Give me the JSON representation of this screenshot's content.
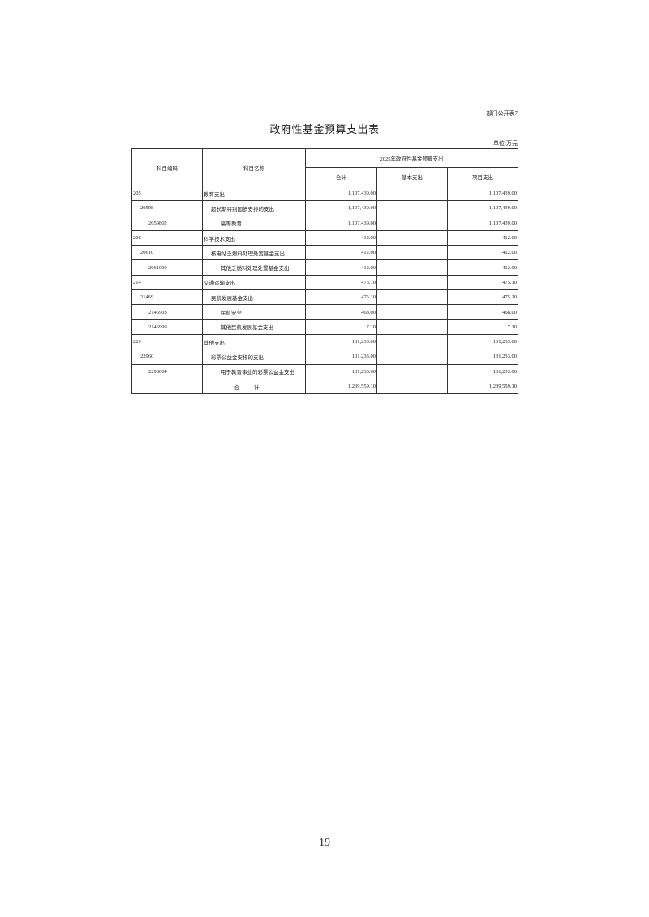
{
  "doc": {
    "tag": "部门公开表7",
    "title": "政府性基金预算支出表",
    "unit": "单位:万元",
    "page_number": "19"
  },
  "table": {
    "headers": {
      "code": "科目编码",
      "name": "科目名称",
      "group": "2025年政府性基金预算支出",
      "total": "合计",
      "basic": "基本支出",
      "project": "项目支出"
    },
    "rows": [
      {
        "code": "205",
        "name": "教育支出",
        "level": 0,
        "total": "1,107,439.00",
        "basic": "",
        "project": "1,107,439.00"
      },
      {
        "code": "20598",
        "name": "超长期特别国债安排的支出",
        "level": 1,
        "total": "1,107,439.00",
        "basic": "",
        "project": "1,107,439.00"
      },
      {
        "code": "2059802",
        "name": "高等教育",
        "level": 2,
        "total": "1,107,439.00",
        "basic": "",
        "project": "1,107,439.00"
      },
      {
        "code": "206",
        "name": "科学技术支出",
        "level": 0,
        "total": "412.00",
        "basic": "",
        "project": "412.00"
      },
      {
        "code": "20610",
        "name": "核电站乏燃料处理处置基金支出",
        "level": 1,
        "total": "412.00",
        "basic": "",
        "project": "412.00"
      },
      {
        "code": "2061099",
        "name": "其他乏燃料处理处置基金支出",
        "level": 2,
        "total": "412.00",
        "basic": "",
        "project": "412.00"
      },
      {
        "code": "214",
        "name": "交通运输支出",
        "level": 0,
        "total": "475.10",
        "basic": "",
        "project": "475.10"
      },
      {
        "code": "21469",
        "name": "民航发展基金支出",
        "level": 1,
        "total": "475.10",
        "basic": "",
        "project": "475.10"
      },
      {
        "code": "2146903",
        "name": "民航安全",
        "level": 2,
        "total": "468.00",
        "basic": "",
        "project": "468.00"
      },
      {
        "code": "2146999",
        "name": "其他民航发展基金支出",
        "level": 2,
        "total": "7.10",
        "basic": "",
        "project": "7.10"
      },
      {
        "code": "229",
        "name": "其他支出",
        "level": 0,
        "total": "131,233.00",
        "basic": "",
        "project": "131,233.00"
      },
      {
        "code": "22960",
        "name": "彩票公益金安排的支出",
        "level": 1,
        "total": "131,233.00",
        "basic": "",
        "project": "131,233.00"
      },
      {
        "code": "2296004",
        "name": "用于教育事业的彩票公益金支出",
        "level": 2,
        "total": "131,233.00",
        "basic": "",
        "project": "131,233.00"
      }
    ],
    "sum": {
      "label": "合计",
      "total": "1,239,559.10",
      "basic": "",
      "project": "1,239,559.10"
    }
  }
}
